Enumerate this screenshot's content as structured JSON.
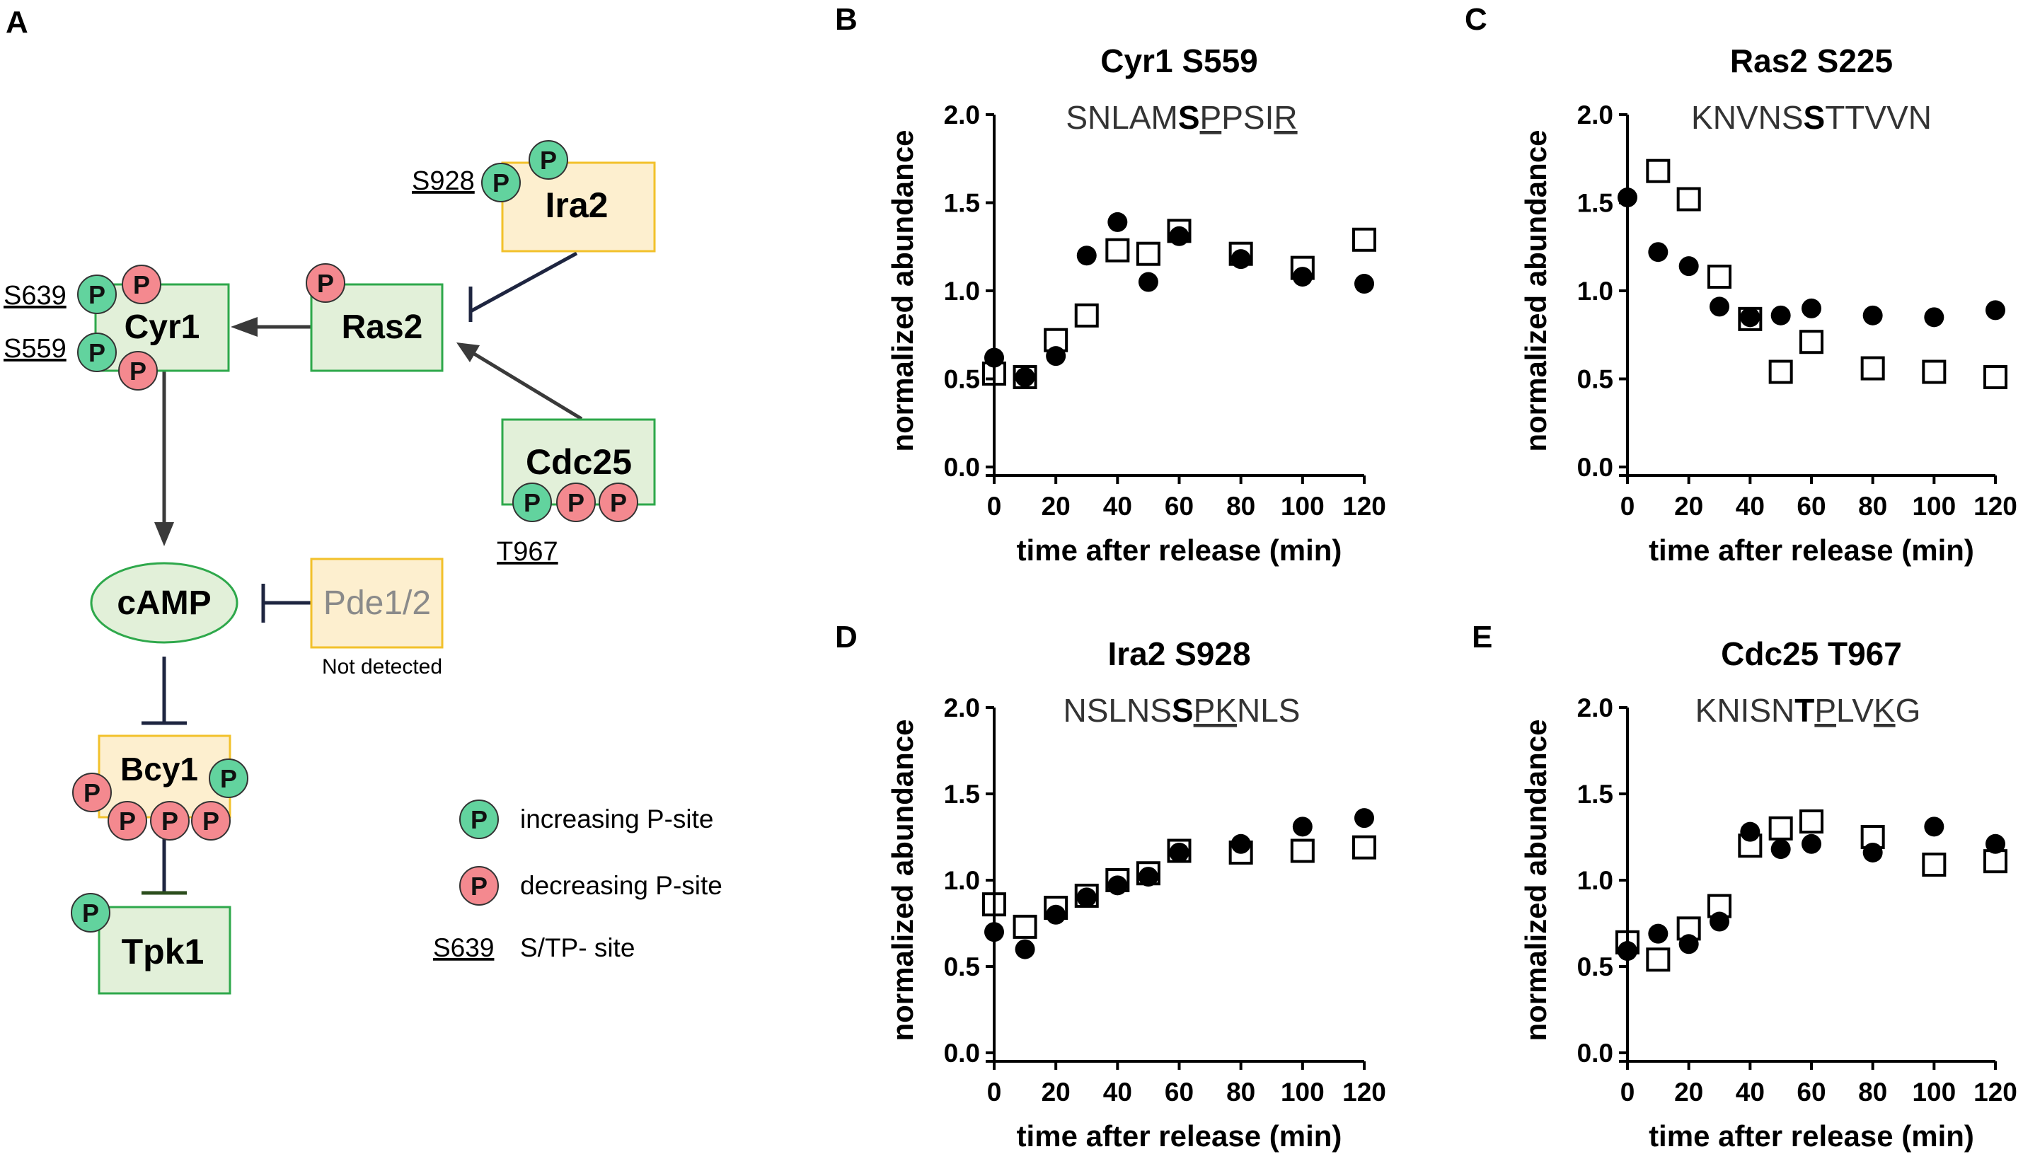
{
  "panels": {
    "a": "A",
    "b": "B",
    "c": "C",
    "d": "D",
    "e": "E"
  },
  "diagram": {
    "nodes": {
      "cyr1": "Cyr1",
      "ras2": "Ras2",
      "ira2": "Ira2",
      "cdc25": "Cdc25",
      "camp": "cAMP",
      "pde": "Pde1/2",
      "bcy1": "Bcy1",
      "tpk1": "Tpk1"
    },
    "sites": {
      "ira2": "S928",
      "cyr1_a": "S639",
      "cyr1_b": "S559",
      "cdc25": "T967"
    },
    "phospho_label": "P",
    "not_detected": "Not detected",
    "legend": {
      "increasing": "increasing P-site",
      "decreasing": "decreasing P-site",
      "site_example": "S639",
      "site_desc": "S/TP- site"
    },
    "colors": {
      "increasing": "#62d39e",
      "decreasing": "#f4898f",
      "green_box": "#e2f0d9",
      "yellow_box": "#fdefcf"
    }
  },
  "chart_data": [
    {
      "type": "scatter",
      "title": "Cyr1 S559",
      "sequence": {
        "pre": "SNLAM",
        "site": "S",
        "u1": "P",
        "mid": "PSI",
        "u2": "R",
        "post": ""
      },
      "xlabel": "time after release (min)",
      "ylabel": "normalized abundance",
      "xlim": [
        0,
        120
      ],
      "ylim": [
        0,
        2.0
      ],
      "xticks": [
        0,
        20,
        40,
        60,
        80,
        100,
        120
      ],
      "yticks": [
        "0.0",
        "0.5",
        "1.0",
        "1.5",
        "2.0"
      ],
      "series": [
        {
          "name": "filled",
          "marker": "circle",
          "x": [
            0,
            10,
            20,
            30,
            40,
            50,
            60,
            80,
            100,
            120
          ],
          "y": [
            0.62,
            0.51,
            0.63,
            1.2,
            1.39,
            1.05,
            1.31,
            1.18,
            1.08,
            1.04
          ]
        },
        {
          "name": "open",
          "marker": "square",
          "x": [
            0,
            10,
            20,
            30,
            40,
            50,
            60,
            80,
            100,
            120
          ],
          "y": [
            0.53,
            0.51,
            0.72,
            0.86,
            1.23,
            1.21,
            1.34,
            1.21,
            1.13,
            1.29
          ]
        }
      ]
    },
    {
      "type": "scatter",
      "title": "Ras2 S225",
      "sequence": {
        "pre": "KNVNS",
        "site": "S",
        "u1": "",
        "mid": "TTVVN",
        "u2": "",
        "post": ""
      },
      "xlabel": "time after release (min)",
      "ylabel": "normalized abundance",
      "xlim": [
        0,
        120
      ],
      "ylim": [
        0,
        2.0
      ],
      "xticks": [
        0,
        20,
        40,
        60,
        80,
        100,
        120
      ],
      "yticks": [
        "0.0",
        "0.5",
        "1.0",
        "1.5",
        "2.0"
      ],
      "series": [
        {
          "name": "filled",
          "marker": "circle",
          "x": [
            0,
            10,
            20,
            30,
            40,
            50,
            60,
            80,
            100,
            120
          ],
          "y": [
            1.53,
            1.22,
            1.14,
            0.91,
            0.85,
            0.86,
            0.9,
            0.86,
            0.85,
            0.89
          ]
        },
        {
          "name": "open",
          "marker": "square",
          "x": [
            10,
            20,
            30,
            40,
            50,
            60,
            80,
            100,
            120
          ],
          "y": [
            1.68,
            1.52,
            1.08,
            0.84,
            0.54,
            0.71,
            0.56,
            0.54,
            0.51
          ]
        }
      ]
    },
    {
      "type": "scatter",
      "title": "Ira2 S928",
      "sequence": {
        "pre": "NSLNS",
        "site": "S",
        "u1": "PK",
        "mid": "",
        "u2": "",
        "post": "NLS"
      },
      "xlabel": "time after release (min)",
      "ylabel": "normalized abundance",
      "xlim": [
        0,
        120
      ],
      "ylim": [
        0,
        2.0
      ],
      "xticks": [
        0,
        20,
        40,
        60,
        80,
        100,
        120
      ],
      "yticks": [
        "0.0",
        "0.5",
        "1.0",
        "1.5",
        "2.0"
      ],
      "series": [
        {
          "name": "filled",
          "marker": "circle",
          "x": [
            0,
            10,
            20,
            30,
            40,
            50,
            60,
            80,
            100,
            120
          ],
          "y": [
            0.7,
            0.6,
            0.8,
            0.9,
            0.97,
            1.02,
            1.16,
            1.21,
            1.31,
            1.36
          ]
        },
        {
          "name": "open",
          "marker": "square",
          "x": [
            0,
            10,
            20,
            30,
            40,
            50,
            60,
            80,
            100,
            120
          ],
          "y": [
            0.86,
            0.73,
            0.84,
            0.91,
            1.0,
            1.04,
            1.17,
            1.16,
            1.17,
            1.19
          ]
        }
      ]
    },
    {
      "type": "scatter",
      "title": "Cdc25 T967",
      "sequence": {
        "pre": "KNISN",
        "site": "T",
        "u1": "P",
        "mid": "LV",
        "u2": "K",
        "post": "G"
      },
      "xlabel": "time after release (min)",
      "ylabel": "normalized abundance",
      "xlim": [
        0,
        120
      ],
      "ylim": [
        0,
        2.0
      ],
      "xticks": [
        0,
        20,
        40,
        60,
        80,
        100,
        120
      ],
      "yticks": [
        "0.0",
        "0.5",
        "1.0",
        "1.5",
        "2.0"
      ],
      "series": [
        {
          "name": "filled",
          "marker": "circle",
          "x": [
            0,
            10,
            20,
            30,
            40,
            50,
            60,
            80,
            100,
            120
          ],
          "y": [
            0.59,
            0.69,
            0.63,
            0.76,
            1.28,
            1.18,
            1.21,
            1.16,
            1.31,
            1.21
          ]
        },
        {
          "name": "open",
          "marker": "square",
          "x": [
            0,
            10,
            20,
            30,
            40,
            50,
            60,
            80,
            100,
            120
          ],
          "y": [
            0.64,
            0.54,
            0.72,
            0.85,
            1.2,
            1.3,
            1.34,
            1.25,
            1.09,
            1.11
          ]
        }
      ]
    }
  ]
}
